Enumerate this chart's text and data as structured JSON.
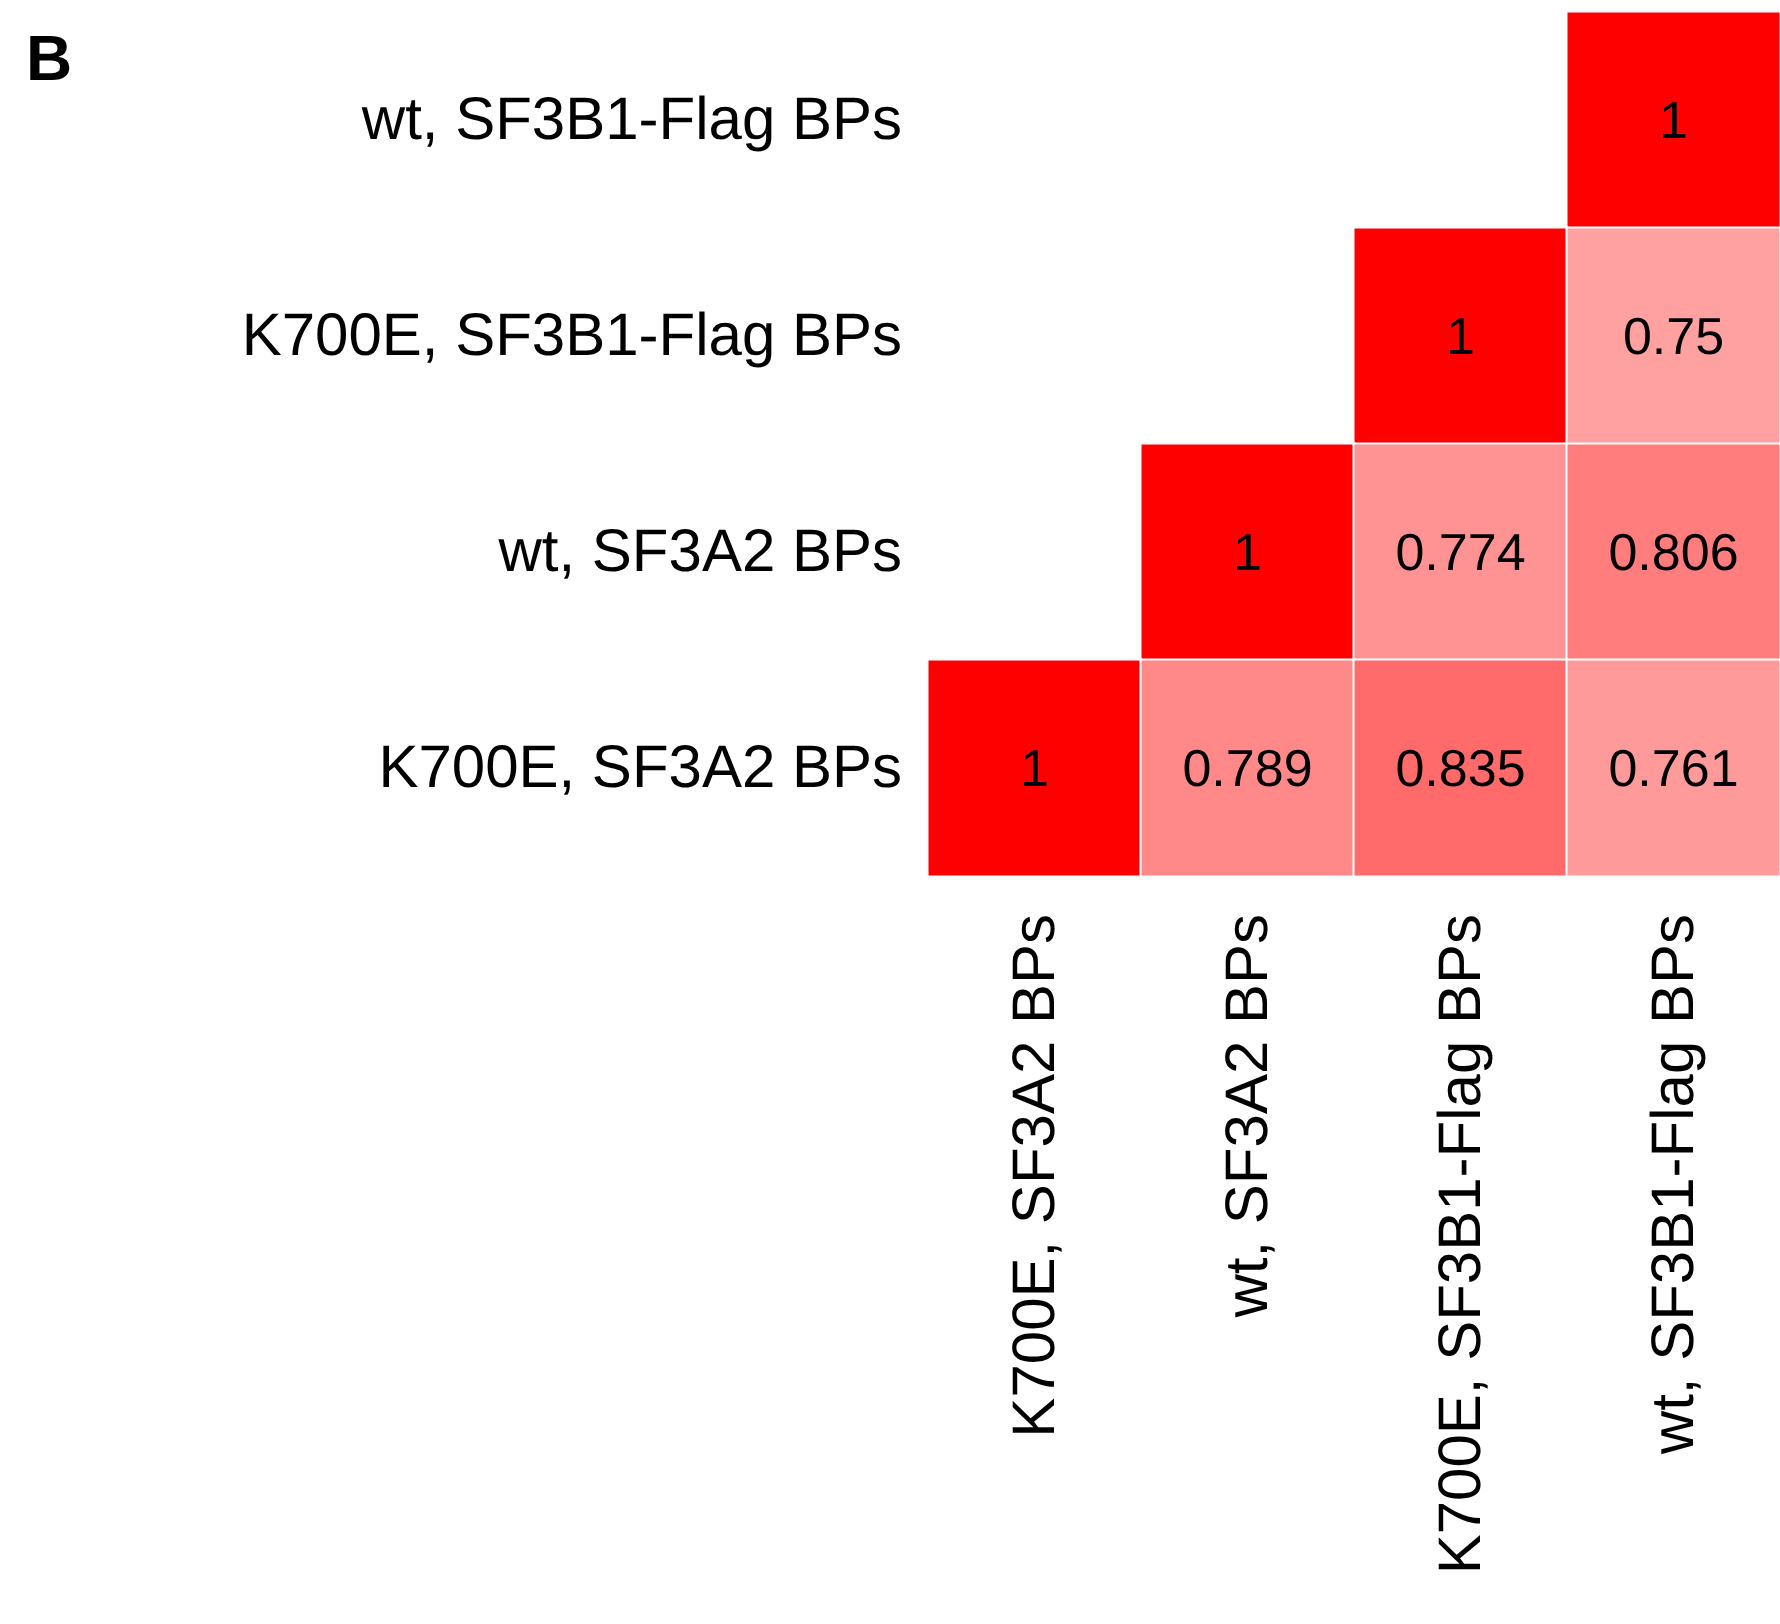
{
  "chart_data": {
    "type": "heatmap",
    "title": "B",
    "color": "#ff0000",
    "categories": [
      "K700E, SF3A2 BPs",
      "wt, SF3A2 BPs",
      "K700E, SF3B1-Flag BPs",
      "wt, SF3B1-Flag BPs"
    ],
    "y_categories": [
      "wt, SF3B1-Flag BPs",
      "K700E, SF3B1-Flag BPs",
      "wt, SF3A2 BPs",
      "K700E, SF3A2 BPs"
    ],
    "cells": [
      [
        null,
        null,
        null,
        1
      ],
      [
        null,
        null,
        1,
        0.75
      ],
      [
        null,
        1,
        0.774,
        0.806
      ],
      [
        1,
        0.789,
        0.835,
        0.761
      ]
    ],
    "data_labels": true
  }
}
